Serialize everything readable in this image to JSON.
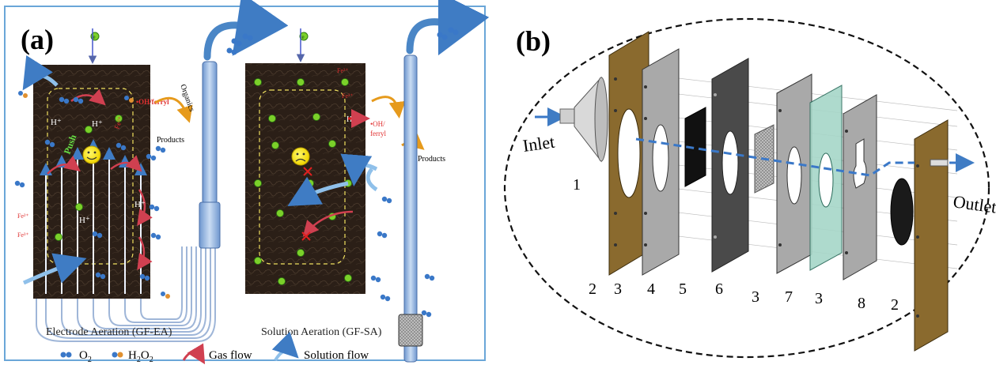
{
  "panel_a": {
    "label": "(a)",
    "left_caption": "Electrode Aeration (GF-EA)",
    "right_caption": "Solution Aeration (GF-SA)",
    "push": "Push",
    "h_plus": "H⁺",
    "fe2": "Fe²⁺",
    "fe3": "Fe³⁺",
    "oh_ferryl": "•OH/ferryl",
    "oh_ferryl_2a": "•OH/",
    "oh_ferryl_2b": "ferryl",
    "organics": "Organics",
    "products": "Products",
    "electron": "e",
    "legend": {
      "o2": "O",
      "o2_sub": "2",
      "h2o2_a": "H",
      "h2o2_sub1": "2",
      "h2o2_b": "O",
      "h2o2_sub2": "2",
      "gas_flow": "Gas flow",
      "solution_flow": "Solution flow"
    }
  },
  "panel_b": {
    "label": "(b)",
    "inlet": "Inlet",
    "outlet": "Outlet",
    "numbers": [
      "1",
      "2",
      "3",
      "4",
      "5",
      "6",
      "3",
      "7",
      "3",
      "8",
      "2"
    ]
  },
  "colors": {
    "frame_border": "#6aa6d8",
    "electrode_dark": "#2a1e16",
    "flow_blue": "#4a86c6",
    "bronze": "#8a6a2e",
    "gray_plate": "#a9a9a9",
    "dark_plate": "#4a4a4a",
    "membrane": "#a6d6c8"
  }
}
